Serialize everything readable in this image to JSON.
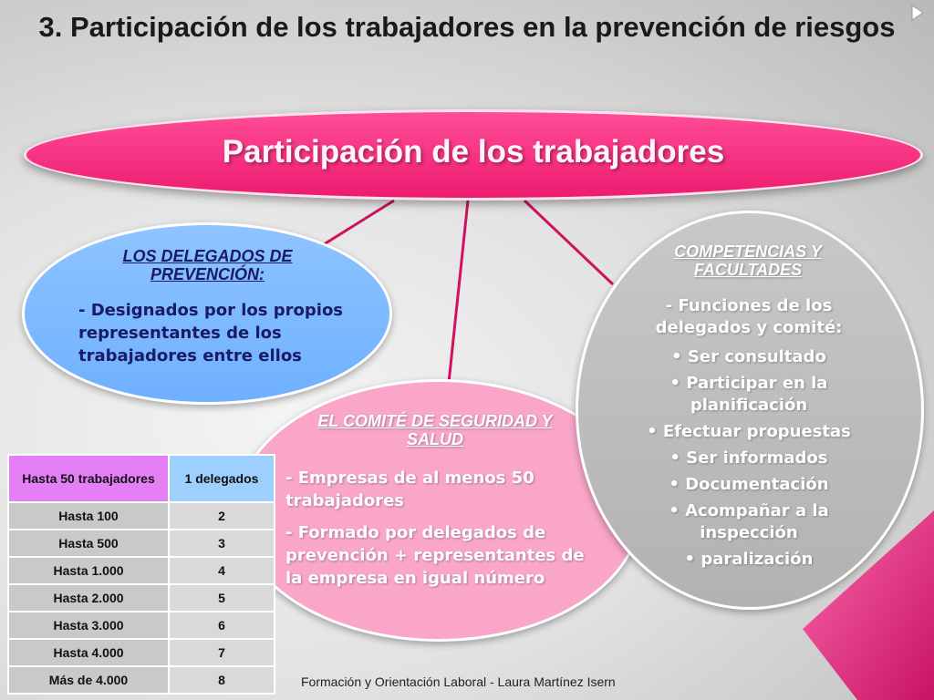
{
  "title": "3. Participación de los trabajadores en la prevención de riesgos",
  "main": {
    "label": "Participación de los trabajadores"
  },
  "delegados": {
    "heading": "LOS DELEGADOS DE PREVENCIÓN:",
    "text": "- Designados por los propios representantes de los trabajadores entre ellos"
  },
  "comite": {
    "heading": "EL COMITÉ DE SEGURIDAD Y SALUD",
    "points": [
      "- Empresas de al menos 50 trabajadores",
      "- Formado por delegados de prevención + representantes de la empresa en igual número"
    ]
  },
  "competencias": {
    "heading": "COMPETENCIAS Y FACULTADES",
    "intro": "- Funciones de los delegados y comité:",
    "items": [
      "• Ser consultado",
      "• Participar en la planificación",
      "• Efectuar propuestas",
      "• Ser informados",
      "• Documentación",
      "• Acompañar a la inspección",
      "• paralización"
    ]
  },
  "table": {
    "rows": [
      {
        "label": "Hasta 50 trabajadores",
        "value": "1 delegados"
      },
      {
        "label": "Hasta 100",
        "value": "2"
      },
      {
        "label": "Hasta 500",
        "value": "3"
      },
      {
        "label": "Hasta 1.000",
        "value": "4"
      },
      {
        "label": "Hasta 2.000",
        "value": "5"
      },
      {
        "label": "Hasta 3.000",
        "value": "6"
      },
      {
        "label": "Hasta 4.000",
        "value": "7"
      },
      {
        "label": "Más de 4.000",
        "value": "8"
      }
    ]
  },
  "footer": "Formación y Orientación Laboral - Laura Martínez Isern",
  "colors": {
    "accent": "#ee1b6f",
    "blue": "#6fb0ff",
    "pink": "#f9a6c9",
    "gray": "#b8b8b8"
  }
}
